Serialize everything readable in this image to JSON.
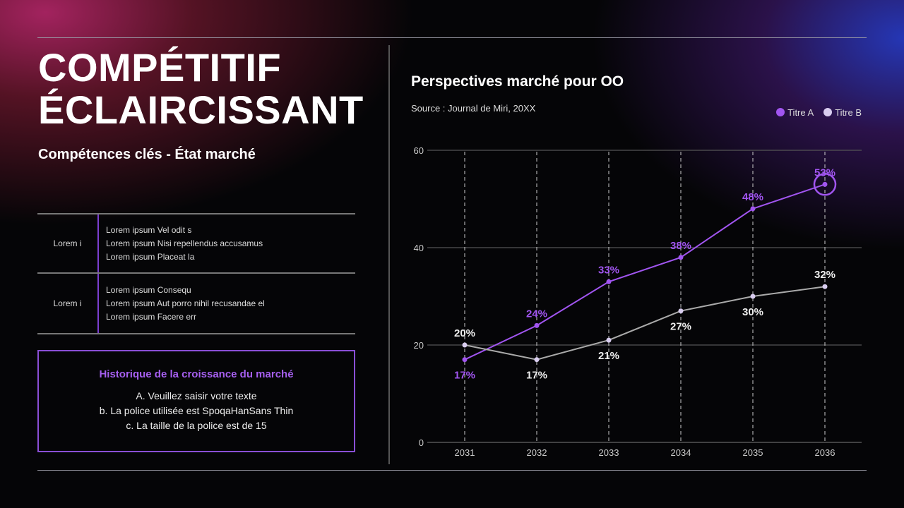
{
  "title_lines": [
    "COMPÉTITIF",
    "ÉCLAIRCISSANT"
  ],
  "subtitle": "Compétences clés - État marché",
  "table": [
    {
      "label": "Lorem i",
      "lines": [
        "Lorem ipsum Vel odit s",
        "Lorem ipsum Nisi repellendus accusamus",
        "Lorem ipsum Placeat la"
      ]
    },
    {
      "label": "Lorem i",
      "lines": [
        "Lorem ipsum Consequ",
        "Lorem ipsum Aut porro nihil recusandae el",
        "Lorem ipsum Facere err"
      ]
    }
  ],
  "box": {
    "title": "Historique de la croissance du marché",
    "lines": [
      "A. Veuillez saisir votre texte",
      "b. La police utilisée est SpoqaHanSans Thin",
      "c. La taille de la police est de 15"
    ]
  },
  "colors": {
    "series_a": "#a155f0",
    "series_b": "#d9cdf0",
    "accent": "#8a4fd6"
  },
  "chart_data": {
    "type": "line",
    "title": "Perspectives marché pour OO",
    "subtitle": "Source : Journal de Miri, 20XX",
    "categories": [
      "2031",
      "2032",
      "2033",
      "2034",
      "2035",
      "2036"
    ],
    "ylim": [
      0,
      60
    ],
    "yticks": [
      "0",
      "20",
      "40",
      "60"
    ],
    "grid": true,
    "legend": "top-right",
    "series": [
      {
        "name": "Titre A",
        "values": [
          17,
          24,
          33,
          38,
          48,
          53
        ],
        "labels": [
          "17%",
          "24%",
          "33%",
          "38%",
          "48%",
          "53%"
        ],
        "highlight": "2036"
      },
      {
        "name": "Titre B",
        "values": [
          20,
          17,
          21,
          27,
          30,
          32
        ],
        "labels": [
          "20%",
          "17%",
          "21%",
          "27%",
          "30%",
          "32%"
        ]
      }
    ]
  }
}
